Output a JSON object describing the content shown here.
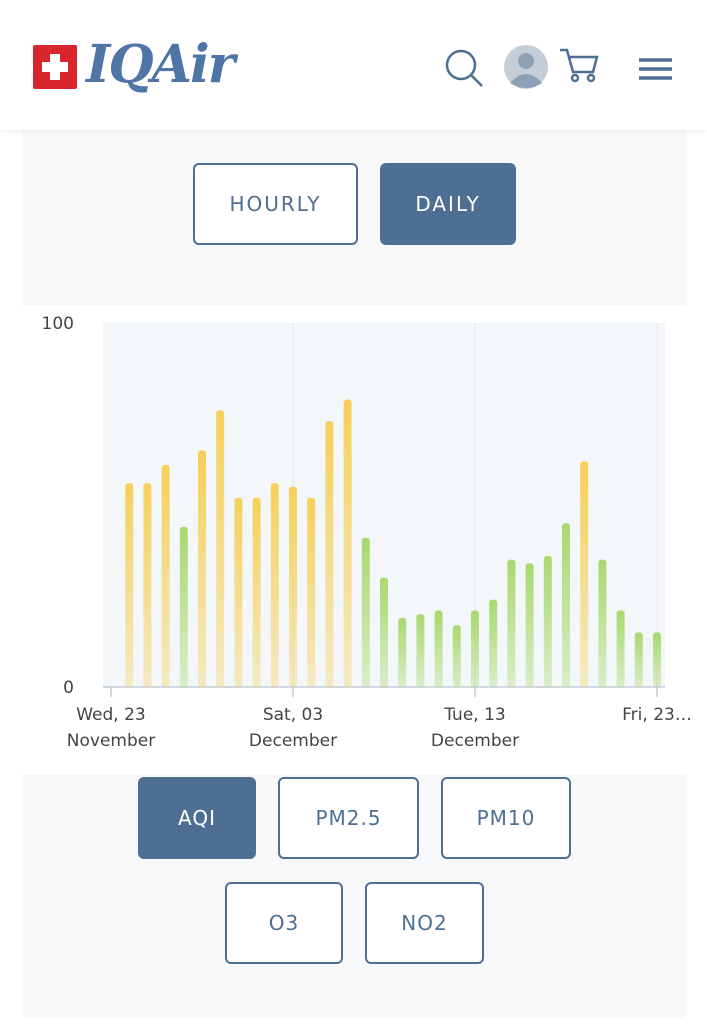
{
  "header": {
    "logo": "IQAir"
  },
  "toggle": {
    "options": [
      "HOURLY",
      "DAILY"
    ],
    "active": 1
  },
  "chart_data": {
    "type": "bar",
    "x": [
      1,
      2,
      3,
      4,
      5,
      6,
      7,
      8,
      9,
      10,
      11,
      12,
      13,
      14,
      15,
      16,
      17,
      18,
      19,
      20,
      21,
      22,
      23,
      24,
      25,
      26,
      27,
      28,
      29,
      30
    ],
    "values": [
      56,
      56,
      61,
      44,
      65,
      76,
      52,
      52,
      56,
      55,
      52,
      73,
      79,
      41,
      30,
      19,
      20,
      21,
      17,
      21,
      24,
      35,
      34,
      36,
      45,
      62,
      35,
      21,
      15,
      15
    ],
    "colors": [
      "#f5d05a",
      "#f5d05a",
      "#f5d05a",
      "#a9d86e",
      "#f5d05a",
      "#f5d05a",
      "#f5d05a",
      "#f5d05a",
      "#f5d05a",
      "#f5d05a",
      "#f5d05a",
      "#f5d05a",
      "#f5d05a",
      "#a9d86e",
      "#a9d86e",
      "#a9d86e",
      "#a9d86e",
      "#a9d86e",
      "#a9d86e",
      "#a9d86e",
      "#a9d86e",
      "#a9d86e",
      "#a9d86e",
      "#a9d86e",
      "#a9d86e",
      "#f5d05a",
      "#a9d86e",
      "#a9d86e",
      "#a9d86e",
      "#a9d86e"
    ],
    "xlim": [
      0,
      30
    ],
    "xticks": [
      {
        "value": 0,
        "label": "Wed, 23\nNovember"
      },
      {
        "value": 10,
        "label": "Sat, 03\nDecember"
      },
      {
        "value": 20,
        "label": "Tue, 13\nDecember"
      },
      {
        "value": 30,
        "label": "Fri, 23…"
      }
    ],
    "ylim": [
      0,
      100
    ],
    "yticks": [
      0,
      100
    ],
    "grid": true
  },
  "metrics": {
    "options": [
      "AQI",
      "PM2.5",
      "PM10",
      "O3",
      "NO2"
    ],
    "active": 0
  }
}
